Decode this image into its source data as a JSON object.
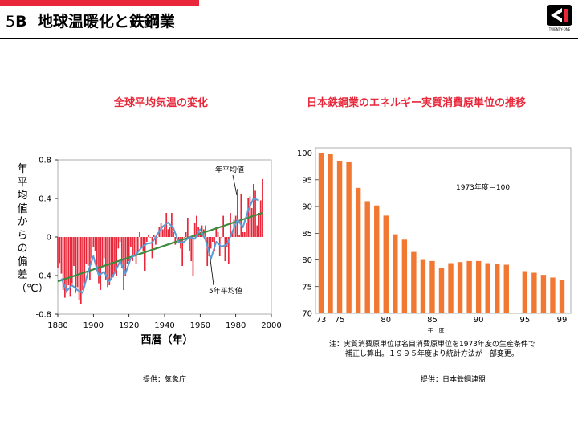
{
  "header": {
    "number": "5",
    "letter": "B",
    "title": "地球温暖化と鉄鋼業",
    "brand": "TWENTY-ONE",
    "accent": "#e8283a"
  },
  "left": {
    "subtitle": "全球平均気温の変化",
    "ylabel": "年平均値からの偏差（℃）",
    "xlabel": "西暦（年）",
    "annot_annual": "年平均値",
    "annot_5yr": "5年平均値",
    "source": "提供：気象庁"
  },
  "right": {
    "subtitle": "日本鉄鋼業のエネルギー実質消費原単位の推移",
    "annot": "1973年度＝100",
    "xlabel": "年　度",
    "note_line1": "注：実質消費原単位は名目消費原単位を1973年度の生産条件で",
    "note_line2": "補正し算出。１９９５年度より統計方法が一部変更。",
    "source": "提供：日本鉄鋼連盟"
  },
  "chart_data": [
    {
      "type": "bar",
      "title": "全球平均気温の変化",
      "xlabel": "西暦（年）",
      "ylabel": "年平均値からの偏差（℃）",
      "xlim": [
        1880,
        2000
      ],
      "ylim": [
        -0.8,
        0.8
      ],
      "xticks": [
        1880,
        1900,
        1920,
        1940,
        1960,
        1980,
        2000
      ],
      "yticks": [
        -0.8,
        -0.4,
        0,
        0.4,
        0.8
      ],
      "annual_color": "#e8283a",
      "smooth_color": "#5b9bd5",
      "trend_color": "#3c8a3c",
      "series": [
        {
          "name": "年平均値",
          "x": [
            1880,
            1881,
            1882,
            1883,
            1884,
            1885,
            1886,
            1887,
            1888,
            1889,
            1890,
            1891,
            1892,
            1893,
            1894,
            1895,
            1896,
            1897,
            1898,
            1899,
            1900,
            1901,
            1902,
            1903,
            1904,
            1905,
            1906,
            1907,
            1908,
            1909,
            1910,
            1911,
            1912,
            1913,
            1914,
            1915,
            1916,
            1917,
            1918,
            1919,
            1920,
            1921,
            1922,
            1923,
            1924,
            1925,
            1926,
            1927,
            1928,
            1929,
            1930,
            1931,
            1932,
            1933,
            1934,
            1935,
            1936,
            1937,
            1938,
            1939,
            1940,
            1941,
            1942,
            1943,
            1944,
            1945,
            1946,
            1947,
            1948,
            1949,
            1950,
            1951,
            1952,
            1953,
            1954,
            1955,
            1956,
            1957,
            1958,
            1959,
            1960,
            1961,
            1962,
            1963,
            1964,
            1965,
            1966,
            1967,
            1968,
            1969,
            1970,
            1971,
            1972,
            1973,
            1974,
            1975,
            1976,
            1977,
            1978,
            1979,
            1980,
            1981,
            1982,
            1983,
            1984,
            1985,
            1986,
            1987,
            1988,
            1989,
            1990,
            1991,
            1992,
            1993,
            1994,
            1995
          ],
          "y": [
            -0.32,
            -0.27,
            -0.38,
            -0.55,
            -0.63,
            -0.58,
            -0.5,
            -0.62,
            -0.48,
            -0.3,
            -0.58,
            -0.52,
            -0.65,
            -0.7,
            -0.55,
            -0.48,
            -0.28,
            -0.3,
            -0.45,
            -0.22,
            -0.1,
            -0.15,
            -0.35,
            -0.48,
            -0.55,
            -0.3,
            -0.22,
            -0.45,
            -0.52,
            -0.5,
            -0.45,
            -0.42,
            -0.38,
            -0.4,
            -0.12,
            -0.05,
            -0.32,
            -0.55,
            -0.4,
            -0.28,
            -0.25,
            -0.1,
            -0.25,
            -0.2,
            -0.28,
            -0.15,
            0.05,
            -0.1,
            -0.15,
            -0.35,
            -0.05,
            0.02,
            0.0,
            -0.22,
            0.02,
            -0.08,
            0.0,
            0.1,
            0.15,
            0.08,
            0.1,
            0.25,
            0.08,
            0.1,
            0.25,
            0.05,
            -0.08,
            -0.02,
            -0.05,
            -0.12,
            -0.3,
            0.0,
            0.05,
            0.2,
            -0.15,
            -0.25,
            -0.4,
            0.15,
            0.22,
            0.1,
            0.05,
            0.12,
            0.08,
            0.12,
            -0.3,
            -0.2,
            -0.12,
            -0.05,
            -0.15,
            0.1,
            0.05,
            -0.2,
            0.0,
            0.22,
            -0.25,
            -0.1,
            -0.28,
            0.25,
            0.05,
            0.18,
            0.22,
            0.5,
            0.02,
            0.45,
            0.05,
            0.05,
            0.15,
            0.4,
            0.42,
            0.3,
            0.55,
            0.48,
            0.12,
            0.25,
            0.38,
            0.6
          ]
        },
        {
          "name": "5年平均値",
          "x": [
            1882,
            1885,
            1888,
            1891,
            1894,
            1897,
            1900,
            1903,
            1906,
            1909,
            1912,
            1915,
            1918,
            1921,
            1924,
            1927,
            1930,
            1933,
            1936,
            1939,
            1942,
            1945,
            1948,
            1951,
            1954,
            1957,
            1960,
            1963,
            1966,
            1969,
            1972,
            1975,
            1978,
            1981,
            1984,
            1987,
            1990,
            1993
          ],
          "y": [
            -0.43,
            -0.56,
            -0.5,
            -0.55,
            -0.58,
            -0.36,
            -0.2,
            -0.4,
            -0.36,
            -0.46,
            -0.37,
            -0.25,
            -0.38,
            -0.22,
            -0.18,
            -0.11,
            -0.07,
            -0.06,
            0.03,
            0.11,
            0.15,
            0.09,
            -0.06,
            -0.05,
            0.0,
            -0.02,
            0.08,
            -0.03,
            -0.23,
            -0.05,
            -0.1,
            -0.08,
            0.05,
            0.18,
            0.1,
            0.28,
            0.4,
            0.38
          ]
        },
        {
          "name": "trend",
          "x": [
            1880,
            1995
          ],
          "y": [
            -0.46,
            0.25
          ]
        }
      ]
    },
    {
      "type": "bar",
      "title": "日本鉄鋼業のエネルギー実質消費原単位の推移",
      "xlabel": "年　度",
      "ylim": [
        70,
        100
      ],
      "yticks": [
        70,
        75,
        80,
        85,
        90,
        95,
        100
      ],
      "xtick_labels": [
        "73",
        "75",
        "80",
        "85",
        "90",
        "95",
        "99"
      ],
      "bar_color": "#f07832",
      "categories": [
        1973,
        1974,
        1975,
        1976,
        1977,
        1978,
        1979,
        1980,
        1981,
        1982,
        1983,
        1984,
        1985,
        1986,
        1987,
        1988,
        1989,
        1990,
        1991,
        1992,
        1993,
        1994,
        1995,
        1996,
        1997,
        1998,
        1999
      ],
      "values": [
        100.0,
        99.8,
        98.6,
        98.3,
        93.5,
        91.0,
        90.2,
        88.3,
        84.8,
        83.8,
        81.5,
        80.0,
        79.8,
        78.5,
        79.4,
        79.6,
        79.8,
        79.8,
        79.4,
        79.3,
        79.1,
        null,
        77.9,
        77.6,
        77.2,
        76.7,
        76.3
      ]
    }
  ]
}
